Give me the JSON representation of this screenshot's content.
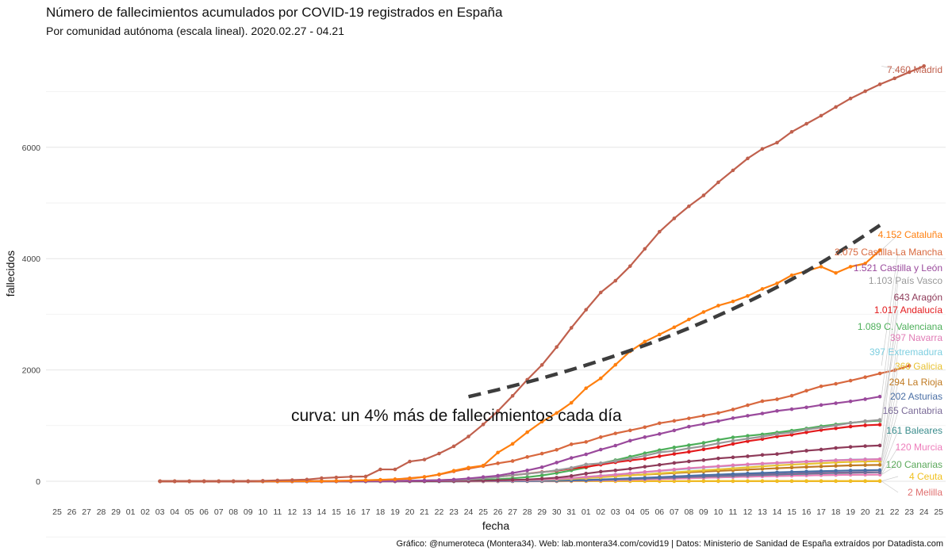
{
  "chart_data": {
    "type": "line",
    "title": "Número de fallecimientos acumulados por COVID-19 registrados en España",
    "subtitle": "Por comunidad autónoma (escala lineal). 2020.02.27 - 04.21",
    "xlabel": "fecha",
    "ylabel": "fallecidos",
    "caption": "Gráfico: @numeroteca (Montera34). Web: lab.montera34.com/covid19 | Datos: Ministerio de Sanidad de España extraídos por Datadista.com",
    "annotation": "curva: un 4% más de fallecimientos cada día",
    "grid": true,
    "legend": "direct labels at line ends",
    "x_ticks": [
      "25",
      "26",
      "27",
      "28",
      "29",
      "01",
      "02",
      "03",
      "04",
      "05",
      "06",
      "07",
      "08",
      "09",
      "10",
      "11",
      "12",
      "13",
      "14",
      "15",
      "16",
      "17",
      "18",
      "19",
      "20",
      "21",
      "22",
      "23",
      "24",
      "25",
      "26",
      "27",
      "28",
      "29",
      "30",
      "31",
      "01",
      "02",
      "03",
      "04",
      "05",
      "06",
      "07",
      "08",
      "09",
      "10",
      "11",
      "12",
      "13",
      "14",
      "15",
      "16",
      "17",
      "18",
      "19",
      "20",
      "21",
      "22",
      "23",
      "24",
      "25"
    ],
    "y_ticks": [
      0,
      2000,
      4000,
      6000
    ],
    "ylim": [
      -320,
      7460
    ],
    "x_dates_start": "2020-03-03",
    "x_dates_end": "2020-04-21",
    "series": [
      {
        "name": "Madrid",
        "label": "7.460 Madrid",
        "color": "#c0604d",
        "values": [
          0,
          0,
          0,
          0,
          0,
          0,
          0,
          8,
          16,
          21,
          31,
          56,
          69,
          81,
          86,
          213,
          213,
          355,
          390,
          498,
          628,
          804,
          1021,
          1263,
          1535,
          1825,
          2090,
          2412,
          2757,
          3082,
          3392,
          3603,
          3865,
          4175,
          4483,
          4723,
          4941,
          5136,
          5371,
          5586,
          5800,
          5972,
          6084,
          6278,
          6423,
          6568,
          6724,
          6877,
          7007,
          7132,
          7239,
          7351,
          7460
        ]
      },
      {
        "name": "Cataluña",
        "label": "4.152 Cataluña",
        "color": "#ff7f0e",
        "values": [
          0,
          0,
          0,
          0,
          0,
          0,
          0,
          0,
          0,
          1,
          3,
          3,
          6,
          11,
          19,
          27,
          35,
          48,
          78,
          124,
          189,
          245,
          282,
          516,
          672,
          882,
          1070,
          1226,
          1410,
          1672,
          1849,
          2093,
          2335,
          2508,
          2637,
          2767,
          2907,
          3041,
          3156,
          3231,
          3329,
          3456,
          3556,
          3702,
          3778,
          3855,
          3743,
          3855,
          3912,
          4152
        ]
      },
      {
        "name": "Castilla-La Mancha",
        "label": "2.075 Castilla-La Mancha",
        "color": "#d8683e",
        "values": [
          0,
          0,
          0,
          0,
          0,
          0,
          0,
          0,
          1,
          1,
          1,
          3,
          7,
          10,
          17,
          22,
          36,
          55,
          78,
          120,
          178,
          228,
          273,
          323,
          364,
          437,
          497,
          566,
          665,
          707,
          793,
          860,
          914,
          972,
          1043,
          1085,
          1130,
          1179,
          1226,
          1290,
          1366,
          1439,
          1473,
          1537,
          1627,
          1706,
          1751,
          1808,
          1870,
          1937,
          1995,
          2075
        ]
      },
      {
        "name": "Castilla y León",
        "label": "1.521 Castilla y León",
        "color": "#9a4a9c",
        "values": [
          0,
          0,
          0,
          0,
          0,
          0,
          0,
          0,
          0,
          0,
          1,
          2,
          5,
          10,
          13,
          19,
          30,
          51,
          76,
          101,
          149,
          195,
          253,
          336,
          419,
          484,
          569,
          641,
          729,
          793,
          850,
          913,
          982,
          1030,
          1081,
          1134,
          1177,
          1218,
          1264,
          1295,
          1328,
          1370,
          1402,
          1436,
          1475,
          1521
        ]
      },
      {
        "name": "País Vasco",
        "label": "1.103 País Vasco",
        "color": "#999999",
        "values": [
          0,
          0,
          0,
          0,
          0,
          0,
          0,
          0,
          0,
          0,
          0,
          0,
          4,
          10,
          14,
          18,
          23,
          32,
          53,
          76,
          111,
          136,
          161,
          198,
          239,
          302,
          323,
          364,
          405,
          458,
          520,
          546,
          593,
          630,
          681,
          727,
          766,
          803,
          848,
          880,
          929,
          965,
          1003,
          1048,
          1080,
          1103
        ]
      },
      {
        "name": "Aragón",
        "label": "643 Aragón",
        "color": "#8e3a59",
        "values": [
          0,
          0,
          0,
          0,
          0,
          0,
          0,
          0,
          0,
          0,
          0,
          0,
          1,
          2,
          4,
          5,
          7,
          10,
          17,
          24,
          31,
          46,
          65,
          95,
          138,
          172,
          196,
          224,
          261,
          295,
          329,
          357,
          380,
          411,
          430,
          449,
          473,
          489,
          521,
          549,
          570,
          598,
          617,
          632,
          643
        ]
      },
      {
        "name": "Andalucía",
        "label": "1.017 Andalucía",
        "color": "#e31a1c",
        "values": [
          0,
          0,
          0,
          0,
          0,
          0,
          0,
          0,
          1,
          1,
          2,
          3,
          6,
          10,
          13,
          20,
          26,
          40,
          56,
          81,
          108,
          137,
          166,
          189,
          229,
          258,
          298,
          341,
          376,
          405,
          450,
          491,
          528,
          573,
          614,
          671,
          720,
          758,
          804,
          836,
          879,
          920,
          951,
          983,
          1005,
          1017
        ]
      },
      {
        "name": "C. Valenciana",
        "label": "1.089 C. Valenciana",
        "color": "#4daf5a",
        "values": [
          0,
          0,
          0,
          0,
          0,
          0,
          0,
          0,
          0,
          1,
          2,
          3,
          5,
          8,
          13,
          20,
          27,
          36,
          54,
          74,
          105,
          147,
          196,
          247,
          321,
          379,
          441,
          503,
          559,
          608,
          648,
          690,
          744,
          788,
          816,
          842,
          876,
          910,
          948,
          988,
          1021,
          1049,
          1075,
          1089
        ]
      },
      {
        "name": "Navarra",
        "label": "397 Navarra",
        "color": "#e07bb5",
        "values": [
          0,
          0,
          0,
          0,
          0,
          0,
          0,
          0,
          0,
          0,
          0,
          1,
          2,
          3,
          5,
          7,
          10,
          15,
          22,
          32,
          44,
          58,
          78,
          98,
          118,
          143,
          166,
          189,
          212,
          235,
          252,
          270,
          288,
          303,
          317,
          330,
          342,
          354,
          366,
          376,
          385,
          391,
          397
        ]
      },
      {
        "name": "Extremadura",
        "label": "397 Extremadura",
        "color": "#7ecfe0",
        "values": [
          0,
          0,
          0,
          0,
          0,
          0,
          0,
          0,
          0,
          0,
          0,
          0,
          1,
          3,
          5,
          8,
          12,
          19,
          28,
          41,
          56,
          76,
          98,
          119,
          141,
          165,
          187,
          207,
          226,
          247,
          265,
          281,
          298,
          312,
          327,
          339,
          352,
          365,
          378,
          389,
          394,
          397
        ]
      },
      {
        "name": "Galicia",
        "label": "360 Galicia",
        "color": "#e8c232",
        "values": [
          0,
          0,
          0,
          0,
          0,
          0,
          0,
          0,
          0,
          0,
          0,
          0,
          1,
          2,
          3,
          5,
          8,
          12,
          17,
          24,
          33,
          44,
          57,
          72,
          89,
          107,
          124,
          142,
          160,
          178,
          196,
          213,
          232,
          249,
          268,
          286,
          300,
          312,
          324,
          338,
          348,
          355,
          360
        ]
      },
      {
        "name": "La Rioja",
        "label": "294 La Rioja",
        "color": "#c07a22",
        "values": [
          0,
          0,
          0,
          0,
          0,
          0,
          0,
          0,
          1,
          1,
          2,
          3,
          4,
          6,
          9,
          12,
          17,
          22,
          29,
          37,
          47,
          58,
          70,
          82,
          94,
          108,
          121,
          134,
          148,
          161,
          174,
          186,
          198,
          210,
          222,
          234,
          245,
          256,
          266,
          276,
          285,
          290,
          294
        ]
      },
      {
        "name": "Asturias",
        "label": "202 Asturias",
        "color": "#4a6fa5",
        "values": [
          0,
          0,
          0,
          0,
          0,
          0,
          0,
          0,
          0,
          0,
          0,
          0,
          1,
          2,
          3,
          4,
          6,
          9,
          13,
          18,
          24,
          32,
          42,
          52,
          62,
          74,
          86,
          98,
          110,
          120,
          130,
          140,
          150,
          160,
          168,
          175,
          182,
          188,
          194,
          198,
          202
        ]
      },
      {
        "name": "Cantabria",
        "label": "165 Cantabria",
        "color": "#7b6b98",
        "values": [
          0,
          0,
          0,
          0,
          0,
          0,
          0,
          0,
          0,
          0,
          0,
          0,
          0,
          1,
          2,
          3,
          5,
          8,
          11,
          15,
          20,
          27,
          35,
          44,
          53,
          63,
          72,
          81,
          90,
          99,
          108,
          116,
          124,
          131,
          138,
          145,
          150,
          155,
          159,
          163,
          165
        ]
      },
      {
        "name": "Baleares",
        "label": "161 Baleares",
        "color": "#3a8c8c",
        "values": [
          0,
          0,
          0,
          0,
          0,
          0,
          0,
          0,
          0,
          0,
          0,
          0,
          1,
          2,
          3,
          4,
          6,
          8,
          11,
          15,
          20,
          26,
          33,
          41,
          49,
          58,
          67,
          76,
          84,
          92,
          100,
          108,
          116,
          123,
          130,
          137,
          143,
          149,
          154,
          158,
          161
        ]
      },
      {
        "name": "Murcia",
        "label": "120 Murcia",
        "color": "#ee7dbb",
        "values": [
          0,
          0,
          0,
          0,
          0,
          0,
          0,
          0,
          0,
          0,
          0,
          0,
          0,
          1,
          2,
          3,
          4,
          6,
          9,
          12,
          16,
          21,
          27,
          34,
          41,
          48,
          55,
          62,
          69,
          76,
          82,
          88,
          94,
          100,
          105,
          110,
          114,
          117,
          119,
          120
        ]
      },
      {
        "name": "Canarias",
        "label": "120 Canarias",
        "color": "#5aa85a",
        "values": [
          0,
          0,
          0,
          0,
          0,
          0,
          0,
          0,
          0,
          0,
          0,
          1,
          1,
          2,
          3,
          4,
          6,
          8,
          11,
          14,
          18,
          23,
          29,
          35,
          42,
          49,
          56,
          63,
          70,
          77,
          84,
          90,
          96,
          101,
          106,
          110,
          114,
          117,
          119,
          120
        ]
      },
      {
        "name": "Ceuta",
        "label": "4 Ceuta",
        "color": "#f0c020",
        "values": [
          0,
          0,
          0,
          0,
          0,
          0,
          0,
          0,
          0,
          0,
          0,
          0,
          0,
          0,
          0,
          0,
          0,
          0,
          0,
          0,
          0,
          0,
          0,
          0,
          1,
          1,
          1,
          1,
          2,
          2,
          2,
          2,
          3,
          3,
          3,
          3,
          4,
          4,
          4,
          4,
          4,
          4,
          4,
          4,
          4,
          4,
          4,
          4,
          4
        ]
      },
      {
        "name": "Melilla",
        "label": "2 Melilla",
        "color": "#e07070",
        "values": [
          0,
          0,
          0,
          0,
          0,
          0,
          0,
          0,
          0,
          0,
          0,
          0,
          0,
          0,
          0,
          0,
          0,
          0,
          0,
          0,
          0,
          0,
          0,
          0,
          0,
          0,
          0,
          0,
          1,
          1,
          1,
          1,
          1,
          1,
          1,
          1,
          1,
          1,
          1,
          1,
          1,
          1,
          2,
          2,
          2,
          2,
          2,
          2,
          2,
          2
        ]
      }
    ],
    "reference_curve": {
      "x_start": "2020-03-24",
      "x_end": "2020-04-21",
      "y_start": 1520,
      "y_end": 4600,
      "style": "dashed",
      "color": "#3d3d3d"
    }
  }
}
